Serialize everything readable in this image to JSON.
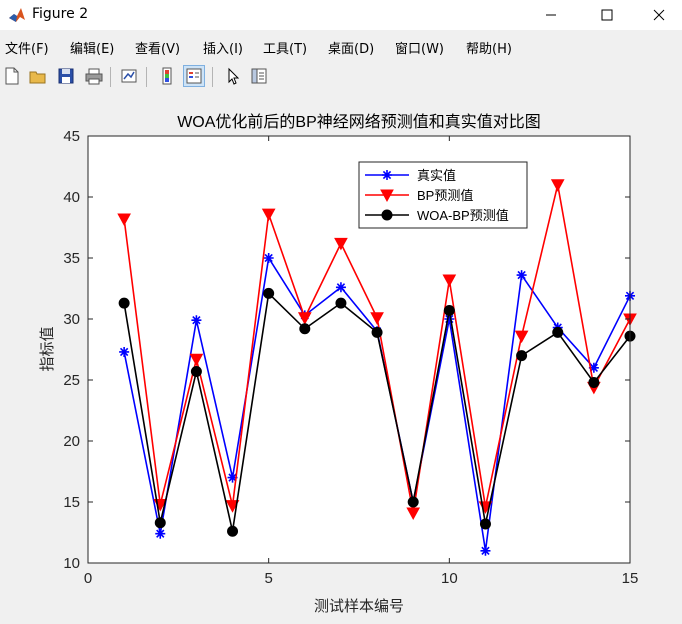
{
  "window": {
    "title": "Figure 2"
  },
  "menu": {
    "items": [
      "文件(F)",
      "编辑(E)",
      "查看(V)",
      "插入(I)",
      "工具(T)",
      "桌面(D)",
      "窗口(W)",
      "帮助(H)"
    ]
  },
  "toolbar": {
    "icons": [
      "new-figure-icon",
      "open-file-icon",
      "save-icon",
      "print-icon",
      "link-plot-icon",
      "insert-colorbar-icon",
      "insert-legend-icon",
      "pointer-icon",
      "property-inspector-icon"
    ]
  },
  "chart_data": {
    "type": "line",
    "title": "WOA优化前后的BP神经网络预测值和真实值对比图",
    "xlabel": "测试样本编号",
    "ylabel": "指标值",
    "xlim": [
      0,
      15
    ],
    "ylim": [
      10,
      45
    ],
    "xticks": [
      0,
      5,
      10,
      15
    ],
    "yticks": [
      10,
      15,
      20,
      25,
      30,
      35,
      40,
      45
    ],
    "grid": false,
    "legend_position": "top-right",
    "x": [
      1,
      2,
      3,
      4,
      5,
      6,
      7,
      8,
      9,
      10,
      11,
      12,
      13,
      14,
      15
    ],
    "series": [
      {
        "name": "真实值",
        "color": "#0000ff",
        "marker": "star",
        "values": [
          27.3,
          12.4,
          29.9,
          17.0,
          35.0,
          30.3,
          32.6,
          29.0,
          15.0,
          30.0,
          11.0,
          33.6,
          29.3,
          26.0,
          31.9
        ]
      },
      {
        "name": "BP预测值",
        "color": "#ff0000",
        "marker": "triangle-down",
        "values": [
          38.2,
          14.8,
          26.7,
          14.7,
          38.6,
          30.1,
          36.2,
          30.1,
          14.1,
          33.2,
          14.6,
          28.6,
          41.0,
          24.4,
          30.0
        ]
      },
      {
        "name": "WOA-BP预测值",
        "color": "#000000",
        "marker": "circle",
        "values": [
          31.3,
          13.3,
          25.7,
          12.6,
          32.1,
          29.2,
          31.3,
          28.9,
          15.0,
          30.7,
          13.2,
          27.0,
          28.9,
          24.8,
          28.6
        ]
      }
    ]
  }
}
